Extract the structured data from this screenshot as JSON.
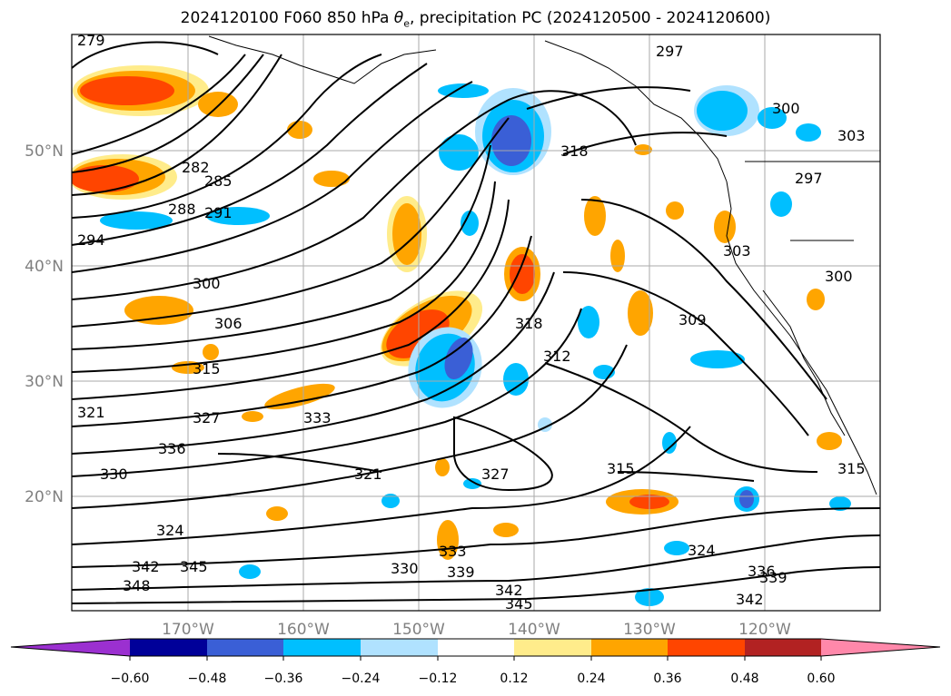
{
  "title": {
    "prefix": "2024120100 F060 850 hPa ",
    "theta_symbol": "θ",
    "theta_subscript": "e",
    "suffix": ", precipitation PC (2024120500 - 2024120600)"
  },
  "axes": {
    "lon_ticks": [
      "170°W",
      "160°W",
      "150°W",
      "140°W",
      "130°W",
      "120°W"
    ],
    "lat_ticks": [
      "50°N",
      "40°N",
      "30°N",
      "20°N"
    ],
    "grid": true
  },
  "contour_labels": [
    "279",
    "282",
    "285",
    "288",
    "291",
    "294",
    "297",
    "300",
    "303",
    "306",
    "309",
    "312",
    "315",
    "318",
    "321",
    "324",
    "327",
    "330",
    "333",
    "336",
    "339",
    "342",
    "345",
    "348"
  ],
  "colorbar": {
    "tick_labels": [
      "−0.60",
      "−0.48",
      "−0.36",
      "−0.24",
      "−0.12",
      "0.12",
      "0.24",
      "0.36",
      "0.48",
      "0.60"
    ],
    "colors": {
      "under": "#9b30d0",
      "bins": [
        "#000099",
        "#3a5fd6",
        "#00bfff",
        "#b0e2ff",
        "#ffffff",
        "#ffec8b",
        "#ffa500",
        "#ff4500",
        "#b22222"
      ],
      "over": "#ff88aa"
    }
  }
}
